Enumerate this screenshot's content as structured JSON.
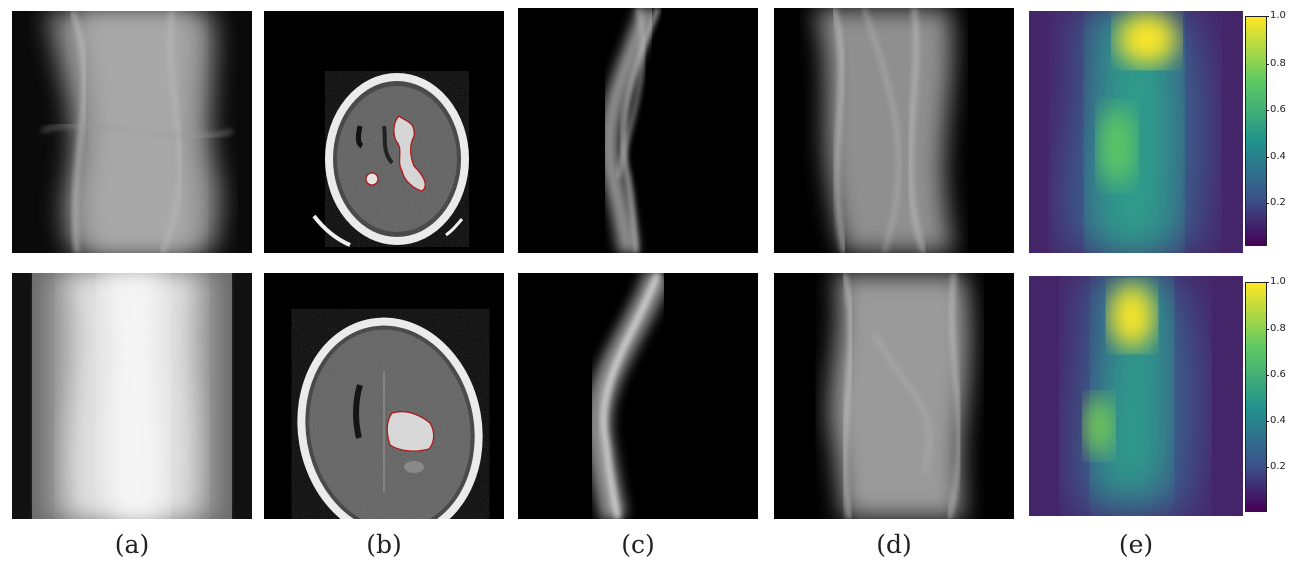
{
  "figure": {
    "captions": [
      "(a)",
      "(b)",
      "(c)",
      "(d)",
      "(e)"
    ],
    "rows": [
      {
        "panels": [
          {
            "kind": "sinogram-full",
            "description": "wide sinogram"
          },
          {
            "kind": "ct-slice",
            "region_outline_color": "#b01818"
          },
          {
            "kind": "sinogram-lesion",
            "description": "narrow sinusoidal band"
          },
          {
            "kind": "sinogram-no-lesion"
          },
          {
            "kind": "heatmap",
            "colormap": "viridis"
          }
        ],
        "colorbar": {
          "ticks": [
            "1.0",
            "0.8",
            "0.6",
            "0.4",
            "0.2"
          ],
          "min": 0.0,
          "max": 1.0
        }
      },
      {
        "panels": [
          {
            "kind": "sinogram-full"
          },
          {
            "kind": "ct-slice",
            "region_outline_color": "#b01818"
          },
          {
            "kind": "sinogram-lesion"
          },
          {
            "kind": "sinogram-no-lesion"
          },
          {
            "kind": "heatmap",
            "colormap": "viridis"
          }
        ],
        "colorbar": {
          "ticks": [
            "1.0",
            "0.8",
            "0.6",
            "0.4",
            "0.2"
          ],
          "min": 0.0,
          "max": 1.0
        }
      }
    ]
  }
}
